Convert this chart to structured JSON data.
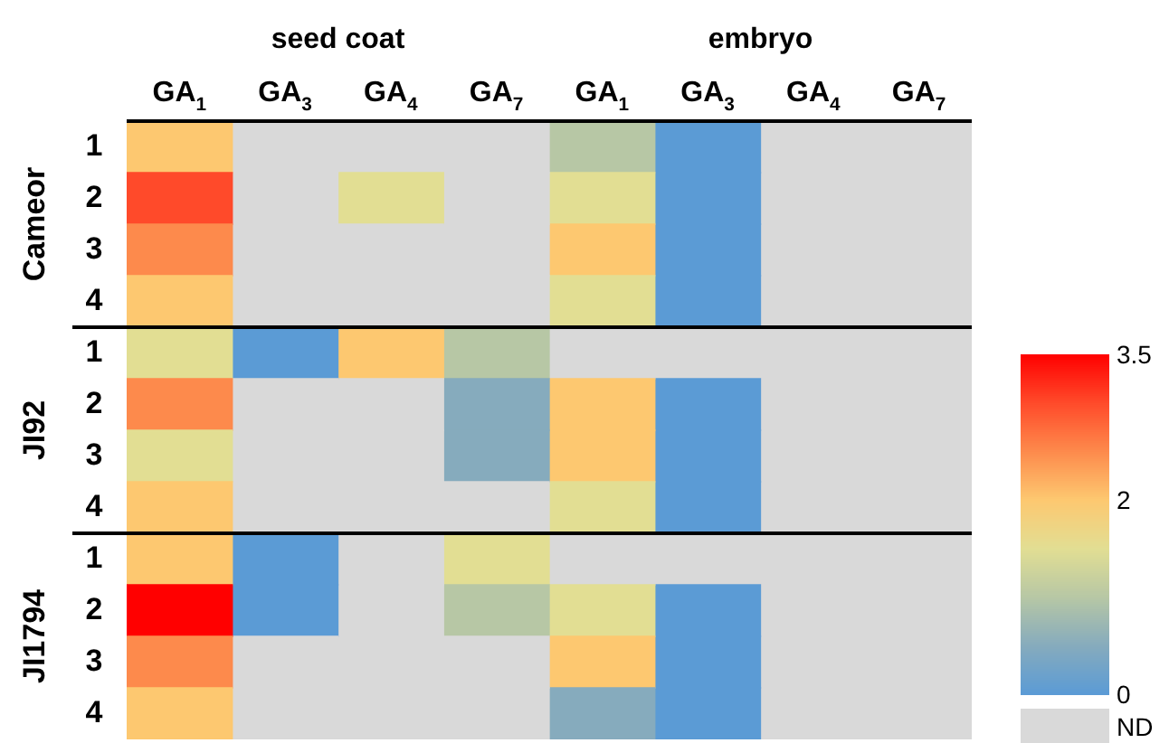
{
  "chart_data": {
    "type": "heatmap",
    "categories": [
      "GA$_{1}$",
      "GA$_{3}$",
      "GA$_{4}$",
      "GA$_{7}$",
      "GA$_{1}$",
      "GA$_{3}$",
      "GA$_{4}$",
      "GA$_{7}$"
    ],
    "y_categories": [
      "1",
      "2",
      "3",
      "4",
      "1",
      "2",
      "3",
      "4",
      "1",
      "2",
      "3",
      "4"
    ],
    "cells": [
      [
        2,
        null,
        null,
        null,
        1,
        0,
        null,
        null
      ],
      [
        3,
        null,
        1.5,
        null,
        1.5,
        0,
        null,
        null
      ],
      [
        2.5,
        null,
        null,
        null,
        2,
        0,
        null,
        null
      ],
      [
        2,
        null,
        null,
        null,
        1.5,
        0,
        null,
        null
      ],
      [
        1.5,
        0,
        2,
        1,
        null,
        null,
        null,
        null
      ],
      [
        2.5,
        null,
        null,
        0.5,
        2,
        0,
        null,
        null
      ],
      [
        1.5,
        null,
        null,
        0.5,
        2,
        0,
        null,
        null
      ],
      [
        2,
        null,
        null,
        null,
        1.5,
        0,
        null,
        null
      ],
      [
        2,
        0,
        null,
        1.5,
        null,
        null,
        null,
        null
      ],
      [
        3.5,
        0,
        null,
        1,
        1.5,
        0,
        null,
        null
      ],
      [
        2.5,
        null,
        null,
        null,
        2,
        0,
        null,
        null
      ],
      [
        2,
        null,
        null,
        null,
        0.5,
        0,
        null,
        null
      ]
    ],
    "clim": [
      0,
      3.5
    ],
    "cticks": [
      0,
      2,
      3.5
    ],
    "annotations": [
      "seed coat",
      "embryo",
      "Cameor",
      "JI92",
      "JI1794",
      "ND"
    ]
  }
}
